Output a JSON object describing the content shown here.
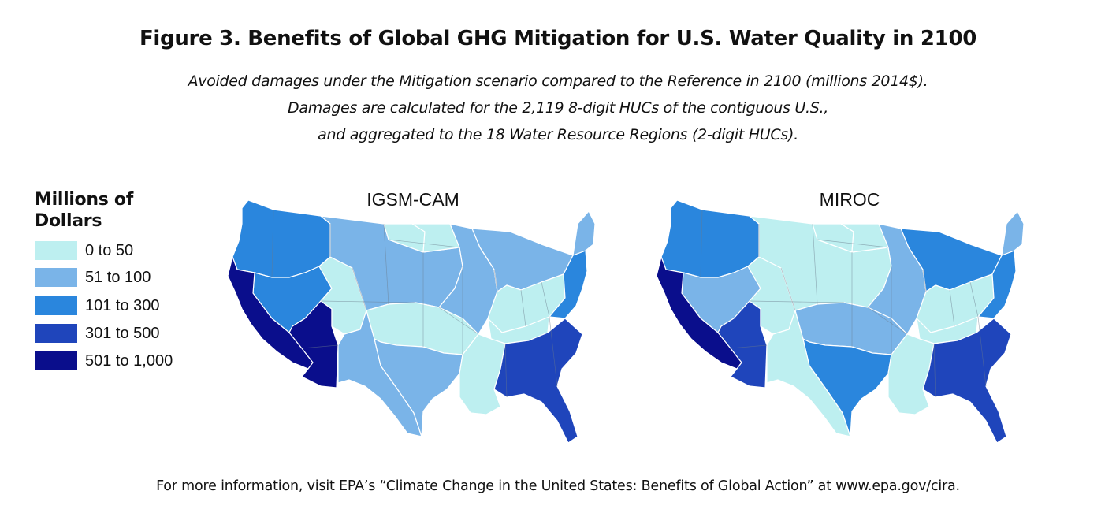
{
  "title": "Figure 3. Benefits of Global GHG Mitigation for U.S. Water Quality in 2100",
  "subtitle_lines": [
    "Avoided damages under the Mitigation scenario compared to the Reference in 2100 (millions 2014$).",
    "Damages are calculated for the 2,119 8-digit HUCs of the contiguous U.S.,",
    "and aggregated to the 18 Water Resource Regions (2-digit HUCs)."
  ],
  "legend": {
    "title_line1": "Millions of",
    "title_line2": "Dollars",
    "items": [
      {
        "label": "0 to 50",
        "color": "#bdeff0"
      },
      {
        "label": "51 to 100",
        "color": "#7ab4e8"
      },
      {
        "label": "101 to 300",
        "color": "#2a86dd"
      },
      {
        "label": "301 to 500",
        "color": "#1f45bb"
      },
      {
        "label": "501 to 1,000",
        "color": "#0a0e8c"
      }
    ]
  },
  "maps": [
    {
      "title": "IGSM-CAM",
      "region_classes": {
        "pacific_northwest": "101 to 300",
        "california": "501 to 1,000",
        "great_basin": "101 to 300",
        "lower_colorado": "501 to 1,000",
        "upper_colorado": "0 to 50",
        "rio_grande": "51 to 100",
        "missouri": "51 to 100",
        "missouri_upper_north": "0 to 50",
        "souris_red_rainy": "0 to 50",
        "arkansas_white_red": "0 to 50",
        "texas_gulf": "51 to 100",
        "upper_mississippi": "51 to 100",
        "great_lakes": "51 to 100",
        "ohio": "0 to 50",
        "tennessee": "0 to 50",
        "lower_mississippi": "0 to 50",
        "south_atlantic_gulf": "301 to 500",
        "mid_atlantic": "101 to 300",
        "new_england": "51 to 100"
      }
    },
    {
      "title": "MIROC",
      "region_classes": {
        "pacific_northwest": "101 to 300",
        "california": "501 to 1,000",
        "great_basin": "51 to 100",
        "lower_colorado": "301 to 500",
        "upper_colorado": "0 to 50",
        "rio_grande": "0 to 50",
        "missouri": "0 to 50",
        "missouri_upper_north": "0 to 50",
        "souris_red_rainy": "0 to 50",
        "arkansas_white_red": "51 to 100",
        "texas_gulf": "101 to 300",
        "upper_mississippi": "51 to 100",
        "great_lakes": "101 to 300",
        "ohio": "0 to 50",
        "tennessee": "0 to 50",
        "lower_mississippi": "0 to 50",
        "south_atlantic_gulf": "301 to 500",
        "mid_atlantic": "101 to 300",
        "new_england": "51 to 100"
      }
    }
  ],
  "footer": "For more information, visit EPA’s “Climate Change in the United States: Benefits of Global Action” at www.epa.gov/cira."
}
